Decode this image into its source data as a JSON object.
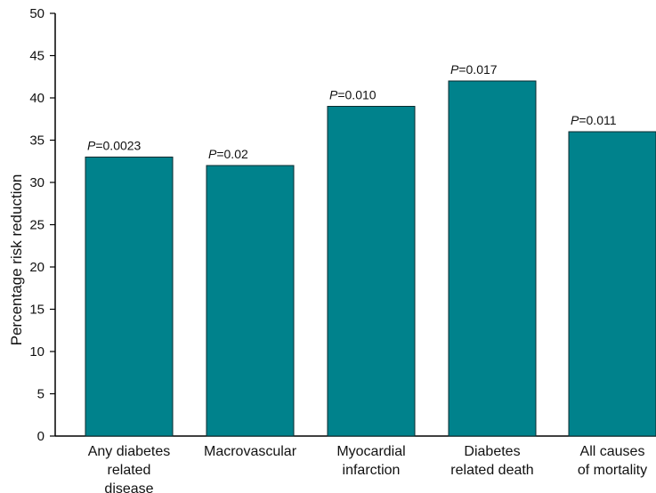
{
  "chart_data": {
    "type": "bar",
    "categories": [
      [
        "Any diabetes",
        "related",
        "disease"
      ],
      [
        "Macrovascular"
      ],
      [
        "Myocardial",
        "infarction"
      ],
      [
        "Diabetes",
        "related death"
      ],
      [
        "All causes",
        "of mortality"
      ]
    ],
    "values": [
      33,
      32,
      39,
      42,
      36
    ],
    "p_values": [
      {
        "prefix": "P",
        "value": "=0.0023"
      },
      {
        "prefix": "P",
        "value": "=0.02"
      },
      {
        "prefix": "P",
        "value": "=0.010"
      },
      {
        "prefix": "P",
        "value": "=0.017"
      },
      {
        "prefix": "P",
        "value": "=0.011"
      }
    ],
    "title": "",
    "xlabel": "",
    "ylabel": "Percentage risk reduction",
    "ylim": [
      0,
      50
    ],
    "yticks": [
      0,
      5,
      10,
      15,
      20,
      25,
      30,
      35,
      40,
      45,
      50
    ],
    "grid": false,
    "bar_color": "#00828c",
    "bar_edge_color": "#0a2a2e"
  }
}
